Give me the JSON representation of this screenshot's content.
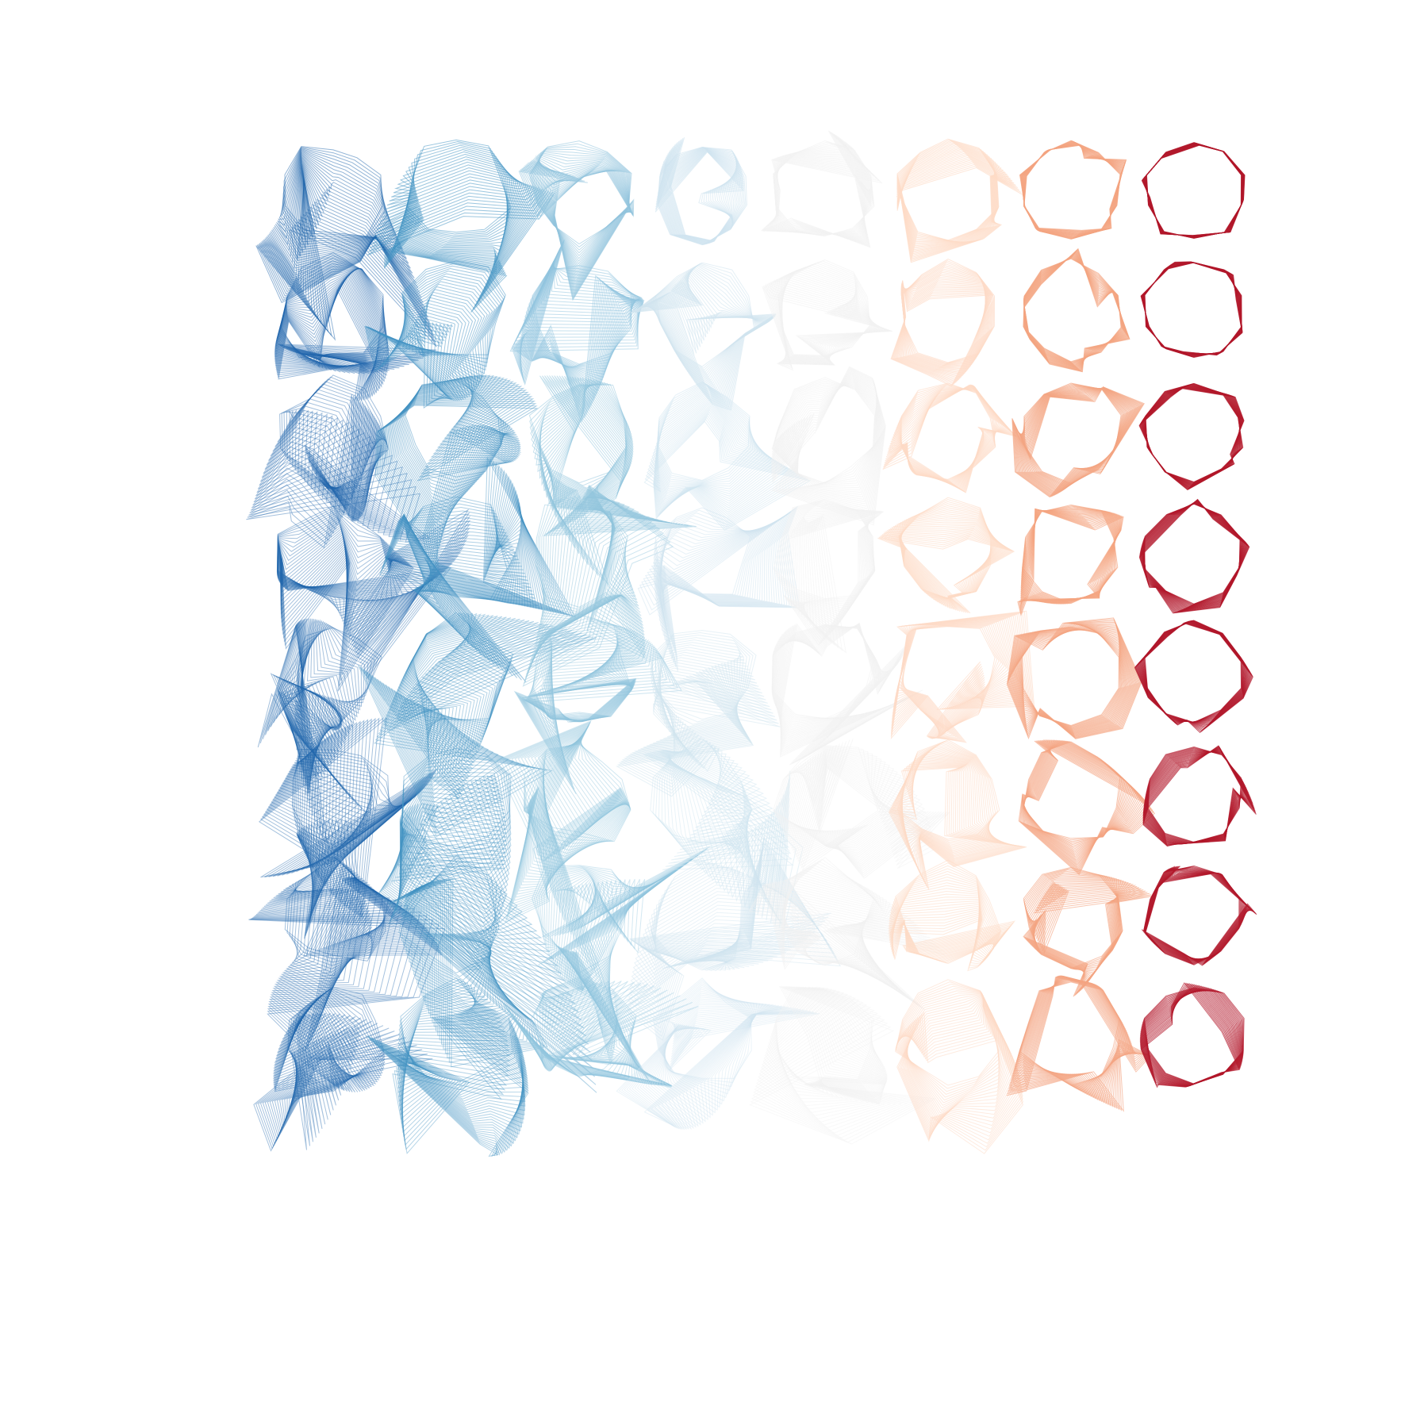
{
  "artwork": {
    "background": "#ffffff",
    "grid": {
      "columns": 8,
      "rows": 8
    },
    "column_colors": [
      "#2166ac",
      "#4393c3",
      "#92c5de",
      "#d1e5f0",
      "#f2f2f2",
      "#fddbc7",
      "#f4a582",
      "#b2182b"
    ],
    "palette_name": "RdBu diverging"
  }
}
